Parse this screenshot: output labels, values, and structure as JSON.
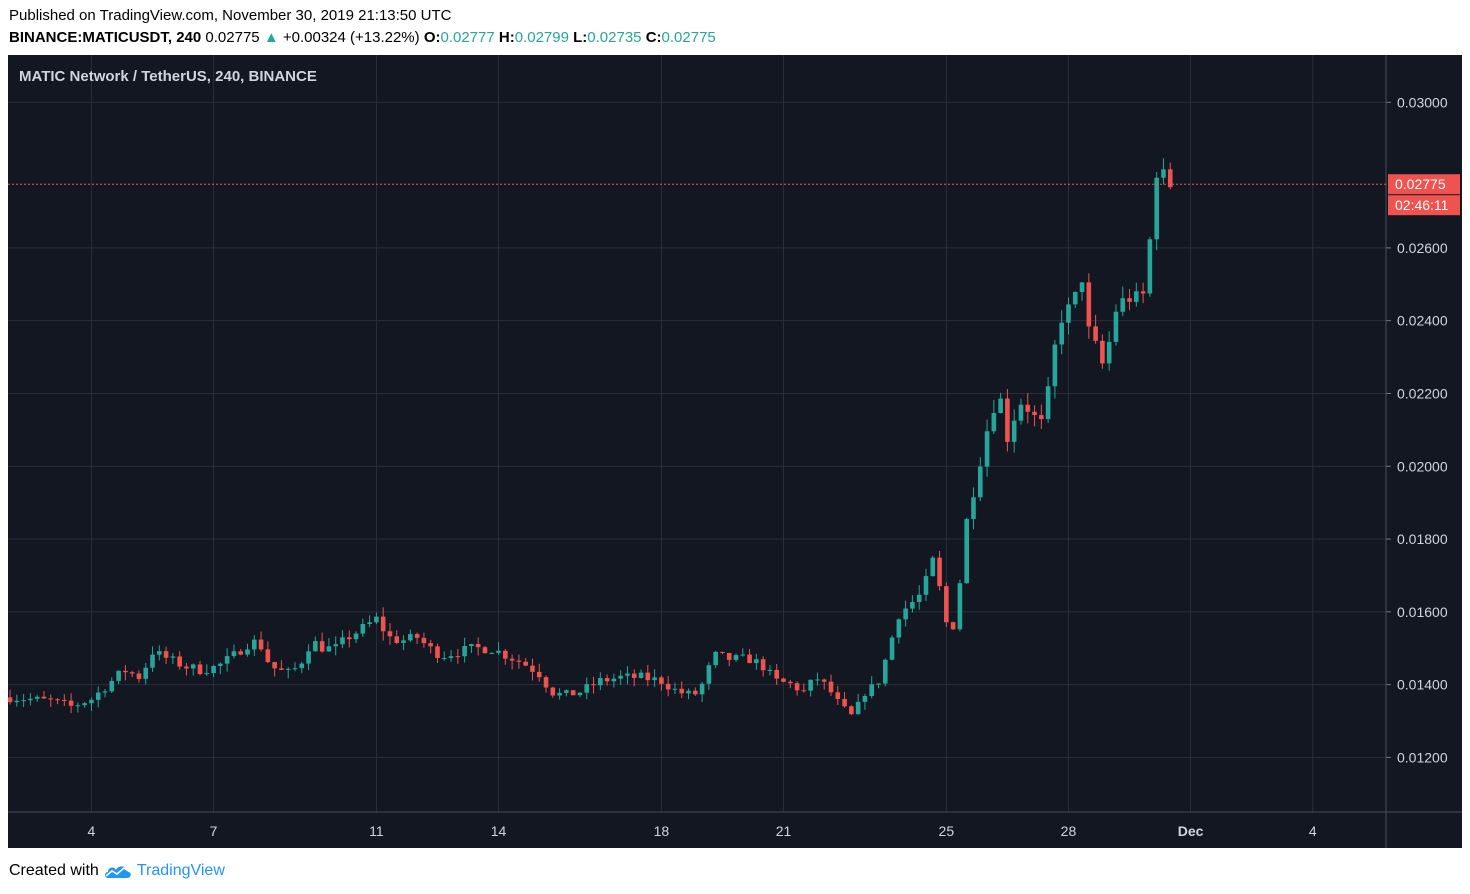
{
  "header": {
    "published": "Published on TradingView.com, November 30, 2019 21:13:50 UTC",
    "symbol": "BINANCE:MATICUSDT, 240",
    "last": "0.02775",
    "arrow": "▲",
    "change": "+0.00324 (+13.22%)",
    "o_label": "O:",
    "o_value": "0.02777",
    "h_label": "H:",
    "h_value": "0.02799",
    "l_label": "L:",
    "l_value": "0.02735",
    "c_label": "C:",
    "c_value": "0.02775"
  },
  "footer": {
    "created_with": "Created with",
    "brand": "TradingView"
  },
  "colors": {
    "background": "#131722",
    "grid": "#2a2e39",
    "up": "#26a69a",
    "down": "#ef5350",
    "text": "#d1d4dc",
    "brand": "#2196f3"
  },
  "chart_data": {
    "type": "candlestick",
    "title": "MATIC Network / TetherUS, 240, BINANCE",
    "x_ticks": [
      {
        "label": "4",
        "day": 4
      },
      {
        "label": "7",
        "day": 7
      },
      {
        "label": "11",
        "day": 11
      },
      {
        "label": "14",
        "day": 14
      },
      {
        "label": "18",
        "day": 18
      },
      {
        "label": "21",
        "day": 21
      },
      {
        "label": "25",
        "day": 25
      },
      {
        "label": "28",
        "day": 28
      },
      {
        "label": "Dec",
        "day": 31
      },
      {
        "label": "4",
        "day": 34
      }
    ],
    "y_ticks": [
      "0.03000",
      "0.02600",
      "0.02400",
      "0.02200",
      "0.02000",
      "0.01800",
      "0.01600",
      "0.01400",
      "0.01200"
    ],
    "y_range": [
      0.0105,
      0.0313
    ],
    "x_range": [
      1.95,
      35.8
    ],
    "grid": true,
    "last_price": {
      "value": 0.02775,
      "label": "0.02775",
      "countdown": "02:46:11"
    },
    "series_waypoints": [
      [
        2.0,
        0.01365
      ],
      [
        3.0,
        0.01355
      ],
      [
        3.5,
        0.0134
      ],
      [
        4.0,
        0.0136
      ],
      [
        4.4,
        0.014
      ],
      [
        4.8,
        0.0144
      ],
      [
        5.2,
        0.0142
      ],
      [
        5.5,
        0.0149
      ],
      [
        5.9,
        0.0147
      ],
      [
        6.3,
        0.0145
      ],
      [
        6.7,
        0.0144
      ],
      [
        7.1,
        0.0145
      ],
      [
        7.5,
        0.0148
      ],
      [
        7.8,
        0.0151
      ],
      [
        8.1,
        0.0152
      ],
      [
        8.4,
        0.0145
      ],
      [
        8.8,
        0.0143
      ],
      [
        9.1,
        0.0145
      ],
      [
        9.4,
        0.0152
      ],
      [
        9.7,
        0.015
      ],
      [
        10.0,
        0.015
      ],
      [
        10.3,
        0.0153
      ],
      [
        10.6,
        0.0155
      ],
      [
        11.0,
        0.0158
      ],
      [
        11.3,
        0.0153
      ],
      [
        11.6,
        0.0152
      ],
      [
        12.0,
        0.0153
      ],
      [
        12.3,
        0.015
      ],
      [
        12.6,
        0.0148
      ],
      [
        13.0,
        0.0149
      ],
      [
        13.4,
        0.015
      ],
      [
        13.8,
        0.015
      ],
      [
        14.2,
        0.0148
      ],
      [
        14.6,
        0.0146
      ],
      [
        15.0,
        0.0143
      ],
      [
        15.3,
        0.0138
      ],
      [
        15.6,
        0.0137
      ],
      [
        16.0,
        0.0138
      ],
      [
        16.5,
        0.0141
      ],
      [
        17.0,
        0.0142
      ],
      [
        17.5,
        0.0142
      ],
      [
        18.0,
        0.0141
      ],
      [
        18.4,
        0.0138
      ],
      [
        18.8,
        0.0137
      ],
      [
        19.0,
        0.014
      ],
      [
        19.3,
        0.0148
      ],
      [
        19.7,
        0.0147
      ],
      [
        20.2,
        0.0147
      ],
      [
        20.5,
        0.0145
      ],
      [
        20.8,
        0.0141
      ],
      [
        21.2,
        0.014
      ],
      [
        21.5,
        0.0138
      ],
      [
        21.8,
        0.0142
      ],
      [
        22.1,
        0.0139
      ],
      [
        22.4,
        0.0134
      ],
      [
        22.7,
        0.0131
      ],
      [
        23.0,
        0.0138
      ],
      [
        23.3,
        0.014
      ],
      [
        23.6,
        0.015
      ],
      [
        23.8,
        0.0159
      ],
      [
        24.1,
        0.0162
      ],
      [
        24.4,
        0.0165
      ],
      [
        24.7,
        0.0175
      ],
      [
        24.9,
        0.0162
      ],
      [
        25.1,
        0.0152
      ],
      [
        25.3,
        0.0165
      ],
      [
        25.5,
        0.0185
      ],
      [
        25.7,
        0.0195
      ],
      [
        25.9,
        0.0205
      ],
      [
        26.1,
        0.0215
      ],
      [
        26.3,
        0.022
      ],
      [
        26.5,
        0.0208
      ],
      [
        26.8,
        0.0218
      ],
      [
        27.1,
        0.0215
      ],
      [
        27.3,
        0.021
      ],
      [
        27.5,
        0.022
      ],
      [
        27.7,
        0.0235
      ],
      [
        27.9,
        0.0244
      ],
      [
        28.1,
        0.0242
      ],
      [
        28.3,
        0.0255
      ],
      [
        28.5,
        0.0237
      ],
      [
        28.7,
        0.0232
      ],
      [
        28.9,
        0.0226
      ],
      [
        29.1,
        0.0242
      ],
      [
        29.3,
        0.0245
      ],
      [
        29.6,
        0.0247
      ],
      [
        29.8,
        0.0244
      ],
      [
        30.0,
        0.0262
      ],
      [
        30.1,
        0.0282
      ],
      [
        30.3,
        0.028
      ],
      [
        30.5,
        0.02775
      ]
    ]
  }
}
